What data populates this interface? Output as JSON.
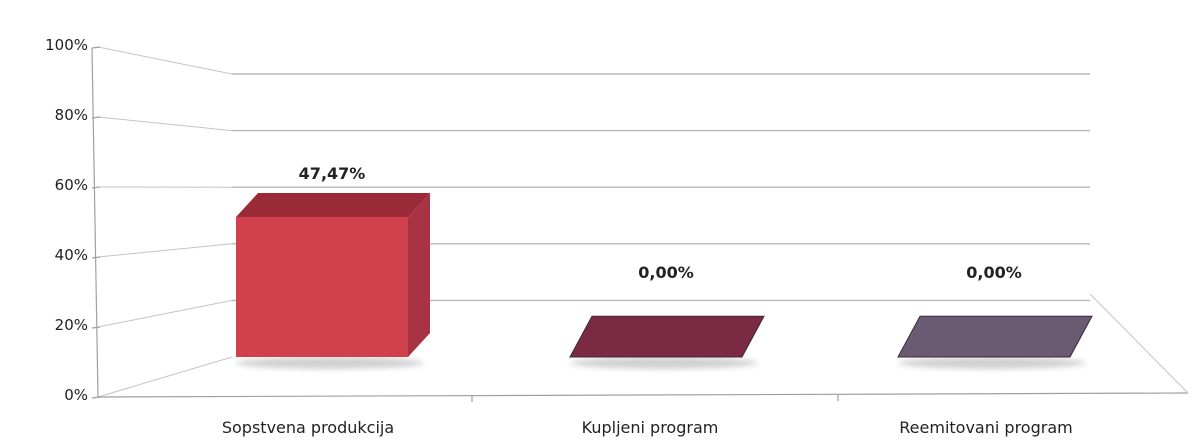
{
  "chart_data": {
    "type": "bar",
    "categories": [
      "Sopstvena produkcija",
      "Kupljeni program",
      "Reemitovani program"
    ],
    "values": [
      47.47,
      0.0,
      0.0
    ],
    "data_labels": [
      "47,47%",
      "0,00%",
      "0,00%"
    ],
    "y_ticks": [
      "0%",
      "20%",
      "40%",
      "60%",
      "80%",
      "100%"
    ],
    "ylim": [
      0,
      100
    ],
    "grid": true,
    "style": "3d-column",
    "colors": {
      "bar_0_front": "#d0404d",
      "bar_0_top": "#9a2a37",
      "bar_0_side": "#a83443",
      "bar_1": "#7a2a42",
      "bar_2": "#6a5a72"
    }
  }
}
